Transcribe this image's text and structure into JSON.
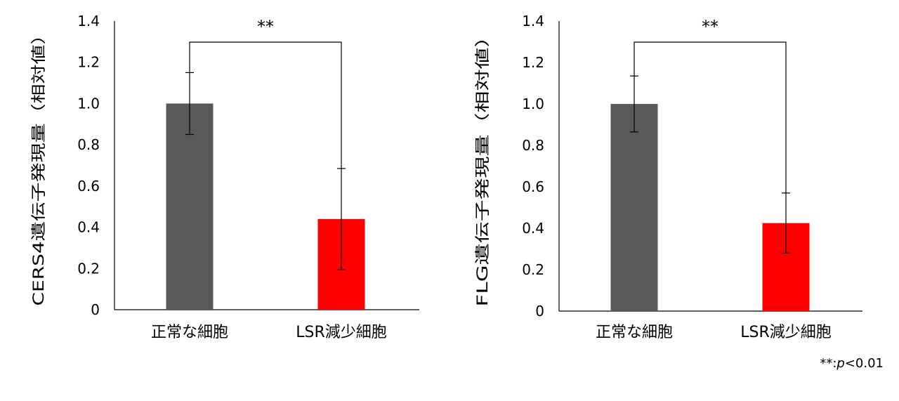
{
  "chart_data": [
    {
      "type": "bar",
      "title": "",
      "xlabel": "",
      "ylabel": "CERS4遺伝子発現量（相対値）",
      "categories": [
        "正常な細胞",
        "LSR減少細胞"
      ],
      "values": [
        1.0,
        0.44
      ],
      "error": [
        0.15,
        0.245
      ],
      "bar_colors": [
        "#595959",
        "#ff0000"
      ],
      "ylim": [
        0,
        1.4
      ],
      "yticks": [
        "0",
        "0.2",
        "0.4",
        "0.6",
        "0.8",
        "1.0",
        "1.2",
        "1.4"
      ],
      "grid": false,
      "significance": "**"
    },
    {
      "type": "bar",
      "title": "",
      "xlabel": "",
      "ylabel": "FLG遺伝子発現量（相対値）",
      "categories": [
        "正常な細胞",
        "LSR減少細胞"
      ],
      "values": [
        1.0,
        0.425
      ],
      "error": [
        0.135,
        0.145
      ],
      "bar_colors": [
        "#595959",
        "#ff0000"
      ],
      "ylim": [
        0,
        1.4
      ],
      "yticks": [
        "0",
        "0.2",
        "0.4",
        "0.6",
        "0.8",
        "1.0",
        "1.2",
        "1.4"
      ],
      "grid": false,
      "significance": "**"
    }
  ],
  "footnote": {
    "stars": "**:",
    "p": "p",
    "threshold": "<0.01"
  }
}
